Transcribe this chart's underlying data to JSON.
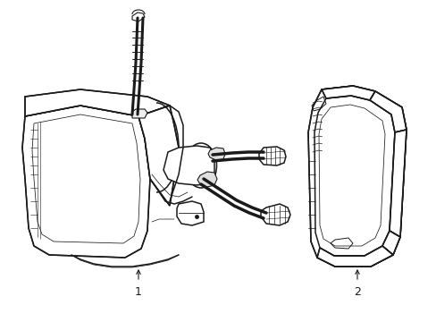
{
  "bg_color": "#ffffff",
  "line_color": "#1a1a1a",
  "line_width": 1.1,
  "thin_line": 0.55,
  "label_1": "1",
  "label_2": "2",
  "figsize": [
    4.89,
    3.6
  ],
  "dpi": 100
}
